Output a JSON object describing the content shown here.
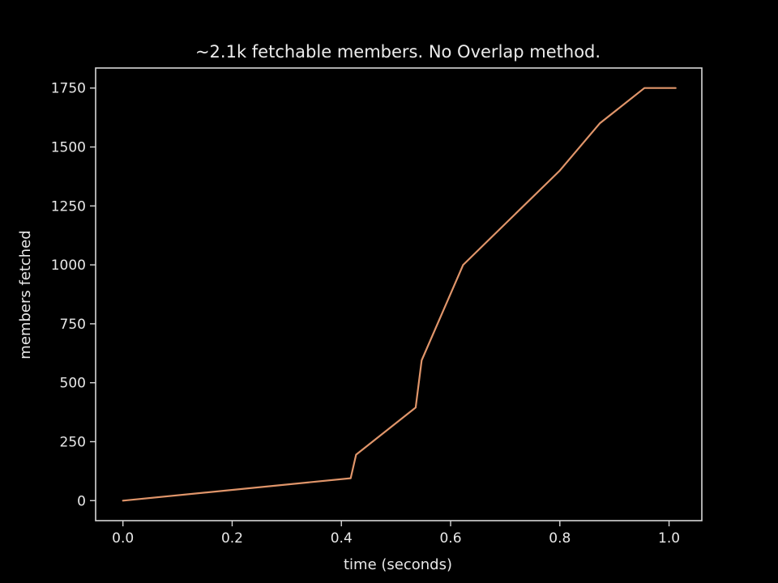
{
  "chart_data": {
    "type": "line",
    "title": "~2.1k fetchable members. No Overlap method.",
    "xlabel": "time (seconds)",
    "ylabel": "members fetched",
    "xlim": [
      -0.05,
      1.06
    ],
    "ylim": [
      -85,
      1835
    ],
    "xticks": [
      0.0,
      0.2,
      0.4,
      0.6,
      0.8,
      1.0
    ],
    "xtick_labels": [
      "0.0",
      "0.2",
      "0.4",
      "0.6",
      "0.8",
      "1.0"
    ],
    "yticks": [
      0,
      250,
      500,
      750,
      1000,
      1250,
      1500,
      1750
    ],
    "ytick_labels": [
      "0",
      "250",
      "500",
      "750",
      "1000",
      "1250",
      "1500",
      "1750"
    ],
    "grid": false,
    "series": [
      {
        "x": [
          0.0,
          0.417,
          0.427,
          0.536,
          0.547,
          0.623,
          0.8,
          0.873,
          0.955,
          1.012
        ],
        "y": [
          0,
          95,
          195,
          395,
          595,
          1000,
          1400,
          1600,
          1750,
          1750
        ],
        "color": "#e0956a"
      }
    ],
    "colors": {
      "background": "#000000",
      "axes": "#d8d8d8",
      "text": "#e8e8e8"
    }
  }
}
